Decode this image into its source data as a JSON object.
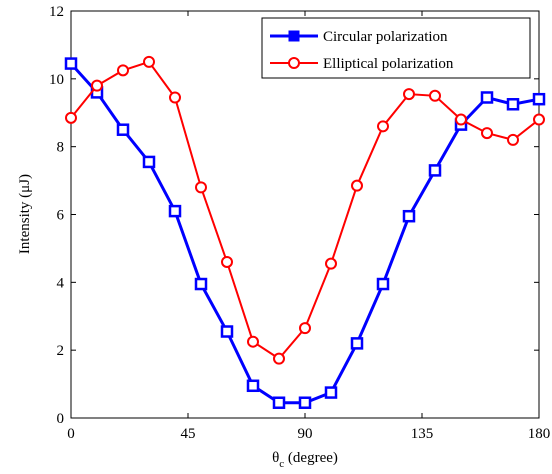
{
  "chart_data": {
    "type": "line",
    "xlabel": "θ",
    "xlabel_subscript": "c",
    "xlabel_unit": " (degree)",
    "ylabel": "Intensity (μJ)",
    "xlim": [
      0,
      180
    ],
    "ylim": [
      0,
      12
    ],
    "xticks": [
      0,
      45,
      90,
      135,
      180
    ],
    "yticks": [
      0,
      2,
      4,
      6,
      8,
      10,
      12
    ],
    "grid": false,
    "legend_position": "top-right",
    "x": [
      0,
      10,
      20,
      30,
      40,
      50,
      60,
      70,
      80,
      90,
      100,
      110,
      120,
      130,
      140,
      150,
      160,
      170,
      180
    ],
    "series": [
      {
        "name": "Circular polarization",
        "color": "#0000ff",
        "marker": "square",
        "values": [
          10.45,
          9.6,
          8.5,
          7.55,
          6.1,
          3.95,
          2.55,
          0.95,
          0.45,
          0.45,
          0.75,
          2.2,
          3.95,
          5.95,
          7.3,
          8.65,
          9.45,
          9.25,
          9.4
        ]
      },
      {
        "name": "Elliptical polarization",
        "color": "#ff0000",
        "marker": "circle",
        "values": [
          8.85,
          9.8,
          10.25,
          10.5,
          9.45,
          6.8,
          4.6,
          2.25,
          1.75,
          2.65,
          4.55,
          6.85,
          8.6,
          9.55,
          9.5,
          8.8,
          8.4,
          8.2,
          8.8
        ]
      }
    ]
  }
}
